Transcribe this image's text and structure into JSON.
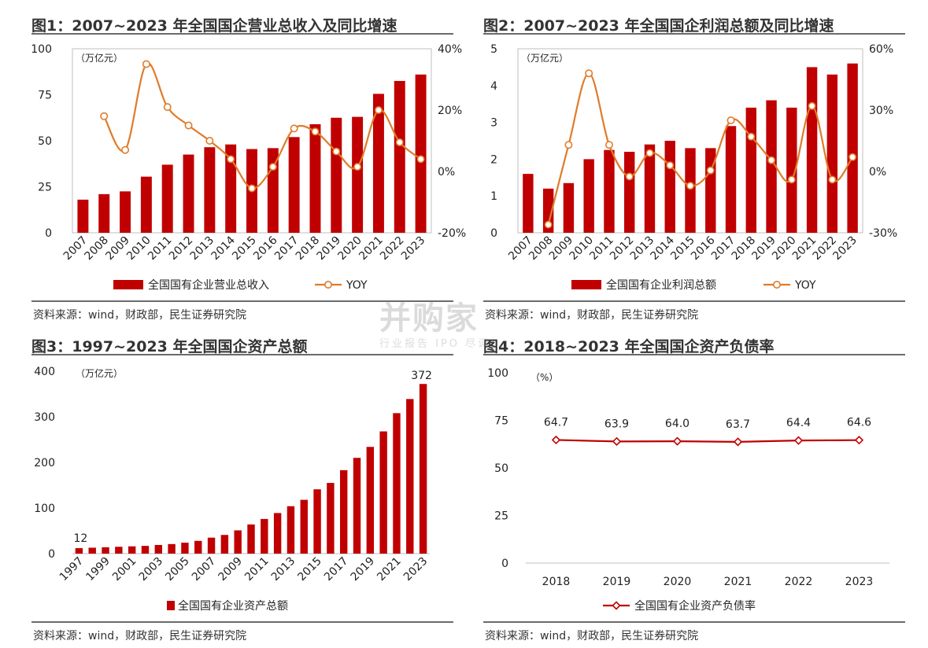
{
  "charts": [
    {
      "title": "图1：2007~2023 年全国国企营业总收入及同比增速",
      "source": "资料来源：wind，财政部，民生证券研究院"
    },
    {
      "title": "图2：2007~2023 年全国国企利润总额及同比增速",
      "source": "资料来源：wind，财政部，民生证券研究院"
    },
    {
      "title": "图3：1997~2023 年全国国企资产总额",
      "source": "资料来源：wind，财政部，民生证券研究院"
    },
    {
      "title": "图4：2018~2023 年全国国企资产负债率",
      "source": "资料来源：wind，财政部，民生证券研究院"
    }
  ],
  "watermark": {
    "main": "并购家",
    "sub": "行业报告 IPO 尽调"
  },
  "colors": {
    "bar": "#c00000",
    "line": "#e07b2a",
    "line4": "#c00000",
    "rule": "#6b6b6b"
  },
  "chart_data": [
    {
      "type": "bar",
      "unit": "（万亿元）",
      "categories": [
        "2007",
        "2008",
        "2009",
        "2010",
        "2011",
        "2012",
        "2013",
        "2014",
        "2015",
        "2016",
        "2017",
        "2018",
        "2019",
        "2020",
        "2021",
        "2022",
        "2023"
      ],
      "series": [
        {
          "name": "全国国有企业营业总收入",
          "type": "bar",
          "axis": "left",
          "values": [
            18,
            21,
            22.5,
            30.5,
            37,
            42.5,
            46.5,
            48,
            45.5,
            46,
            52,
            59,
            62.5,
            63,
            75.5,
            82.5,
            86
          ]
        },
        {
          "name": "YOY",
          "type": "line",
          "axis": "right",
          "values": [
            null,
            18,
            7,
            35,
            21,
            15,
            10,
            4,
            -5.5,
            1.5,
            14,
            13,
            6.5,
            1.5,
            20,
            9.5,
            4
          ]
        }
      ],
      "y_left": {
        "min": 0,
        "max": 100,
        "ticks": [
          "0",
          "25",
          "50",
          "75",
          "100"
        ]
      },
      "y_right": {
        "min": -20,
        "max": 40,
        "ticks": [
          "-20%",
          "0%",
          "20%",
          "40%"
        ]
      }
    },
    {
      "type": "bar",
      "unit": "（万亿元）",
      "categories": [
        "2007",
        "2008",
        "2009",
        "2010",
        "2011",
        "2012",
        "2013",
        "2014",
        "2015",
        "2016",
        "2017",
        "2018",
        "2019",
        "2020",
        "2021",
        "2022",
        "2023"
      ],
      "series": [
        {
          "name": "全国国有企业利润总额",
          "type": "bar",
          "axis": "left",
          "values": [
            1.6,
            1.2,
            1.35,
            2.0,
            2.25,
            2.2,
            2.4,
            2.5,
            2.3,
            2.3,
            2.9,
            3.4,
            3.6,
            3.4,
            4.5,
            4.3,
            4.6
          ]
        },
        {
          "name": "YOY",
          "type": "line",
          "axis": "right",
          "values": [
            null,
            -26,
            13,
            48,
            13,
            -2.5,
            9,
            3,
            -7,
            0.5,
            25,
            17,
            5.5,
            -4,
            32,
            -4,
            7
          ]
        }
      ],
      "y_left": {
        "min": 0,
        "max": 5,
        "ticks": [
          "0",
          "1",
          "2",
          "3",
          "4",
          "5"
        ]
      },
      "y_right": {
        "min": -30,
        "max": 60,
        "ticks": [
          "-30%",
          "0%",
          "30%",
          "60%"
        ]
      }
    },
    {
      "type": "bar",
      "unit": "（万亿元）",
      "categories": [
        "1997",
        "1998",
        "1999",
        "2000",
        "2001",
        "2002",
        "2003",
        "2004",
        "2005",
        "2006",
        "2007",
        "2008",
        "2009",
        "2010",
        "2011",
        "2012",
        "2013",
        "2014",
        "2015",
        "2016",
        "2017",
        "2018",
        "2019",
        "2020",
        "2021",
        "2022",
        "2023"
      ],
      "tick_labels": [
        "1997",
        "1999",
        "2001",
        "2003",
        "2005",
        "2007",
        "2009",
        "2011",
        "2013",
        "2015",
        "2017",
        "2019",
        "2021",
        "2023"
      ],
      "series": [
        {
          "name": "全国国有企业资产总额",
          "type": "bar",
          "values": [
            12,
            13,
            14,
            15,
            16,
            17,
            19,
            21,
            24,
            28,
            35,
            41,
            51,
            64,
            76,
            89,
            104,
            118,
            141,
            155,
            183,
            210,
            234,
            268,
            308,
            339,
            372
          ]
        }
      ],
      "data_labels": {
        "first": "12",
        "last": "372"
      },
      "y": {
        "min": 0,
        "max": 400,
        "ticks": [
          "0",
          "100",
          "200",
          "300",
          "400"
        ]
      }
    },
    {
      "type": "line",
      "unit": "（%）",
      "categories": [
        "2018",
        "2019",
        "2020",
        "2021",
        "2022",
        "2023"
      ],
      "series": [
        {
          "name": "全国国有企业资产负债率",
          "values": [
            64.7,
            63.9,
            64.0,
            63.7,
            64.4,
            64.6
          ],
          "labels": [
            "64.7",
            "63.9",
            "64.0",
            "63.7",
            "64.4",
            "64.6"
          ]
        }
      ],
      "y": {
        "min": 0,
        "max": 100,
        "ticks": [
          "0",
          "25",
          "50",
          "75",
          "100"
        ]
      }
    }
  ]
}
